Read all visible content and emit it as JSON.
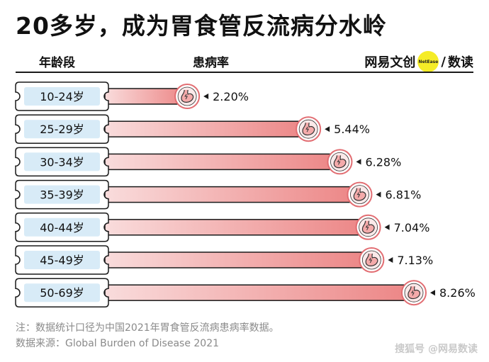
{
  "title": "20多岁，成为胃食管反流病分水岭",
  "headers": {
    "age": "年龄段",
    "rate": "患病率"
  },
  "brand": {
    "name": "网易文创",
    "dot": "NetEase",
    "sep": "/",
    "sub": "数读"
  },
  "chart_data": {
    "type": "bar",
    "orientation": "horizontal",
    "title": "20多岁，成为胃食管反流病分水岭",
    "xlabel": "患病率",
    "ylabel": "年龄段",
    "categories": [
      "10-24岁",
      "25-29岁",
      "30-34岁",
      "35-39岁",
      "40-44岁",
      "45-49岁",
      "50-69岁"
    ],
    "values": [
      2.2,
      5.44,
      6.28,
      6.81,
      7.04,
      7.13,
      8.26
    ],
    "value_labels": [
      "2.20%",
      "5.44%",
      "6.28%",
      "6.81%",
      "7.04%",
      "7.13%",
      "8.26%"
    ],
    "unit": "%",
    "xlim": [
      0,
      8.26
    ],
    "colors": {
      "bar_start": "#f9dcdc",
      "bar_end": "#ec8585",
      "label_box": "#d8ebf7",
      "icon_ring": "#e26d72"
    }
  },
  "notes": {
    "note": "注：数据统计口径为中国2021年胃食管反流病患病率数据。",
    "source": "数据来源：Global Burden of Disease 2021"
  },
  "watermark": "搜狐号 @网易数读"
}
